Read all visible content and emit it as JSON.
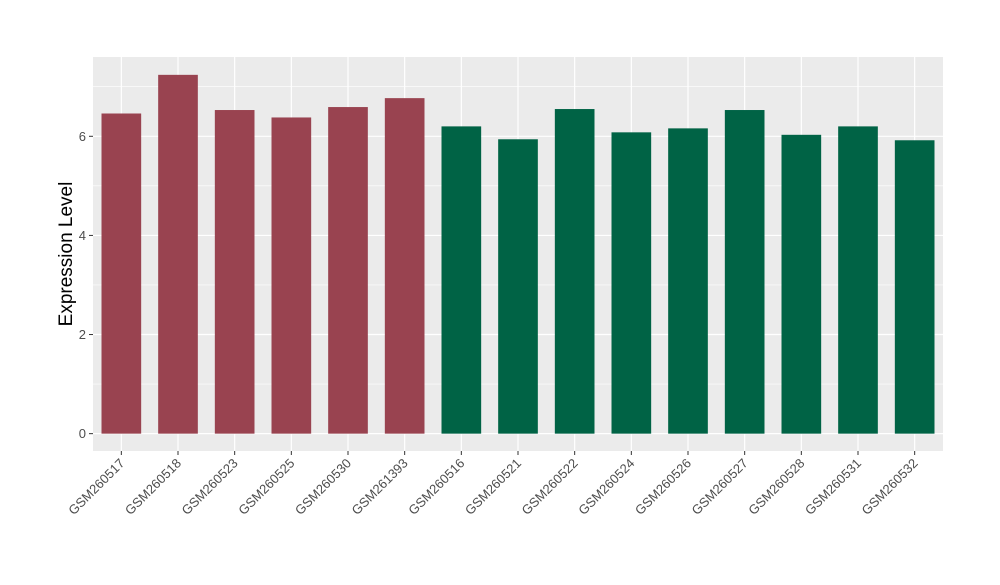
{
  "chart_data": {
    "type": "bar",
    "ylabel": "Expression Level",
    "xlabel": "",
    "ylim": [
      -0.35,
      7.6
    ],
    "yticks": [
      0,
      2,
      4,
      6
    ],
    "grid": true,
    "categories": [
      "GSM260517",
      "GSM260518",
      "GSM260523",
      "GSM260525",
      "GSM260530",
      "GSM261393",
      "GSM260516",
      "GSM260521",
      "GSM260522",
      "GSM260524",
      "GSM260526",
      "GSM260527",
      "GSM260528",
      "GSM260531",
      "GSM260532"
    ],
    "values": [
      6.46,
      7.24,
      6.53,
      6.38,
      6.59,
      6.77,
      6.2,
      5.94,
      6.55,
      6.08,
      6.16,
      6.53,
      6.03,
      6.2,
      5.92
    ],
    "bar_colors": [
      "#994350",
      "#994350",
      "#994350",
      "#994350",
      "#994350",
      "#994350",
      "#006345",
      "#006345",
      "#006345",
      "#006345",
      "#006345",
      "#006345",
      "#006345",
      "#006345",
      "#006345"
    ],
    "panel_background": "#EBEBEB",
    "grid_color": "#FFFFFF"
  }
}
